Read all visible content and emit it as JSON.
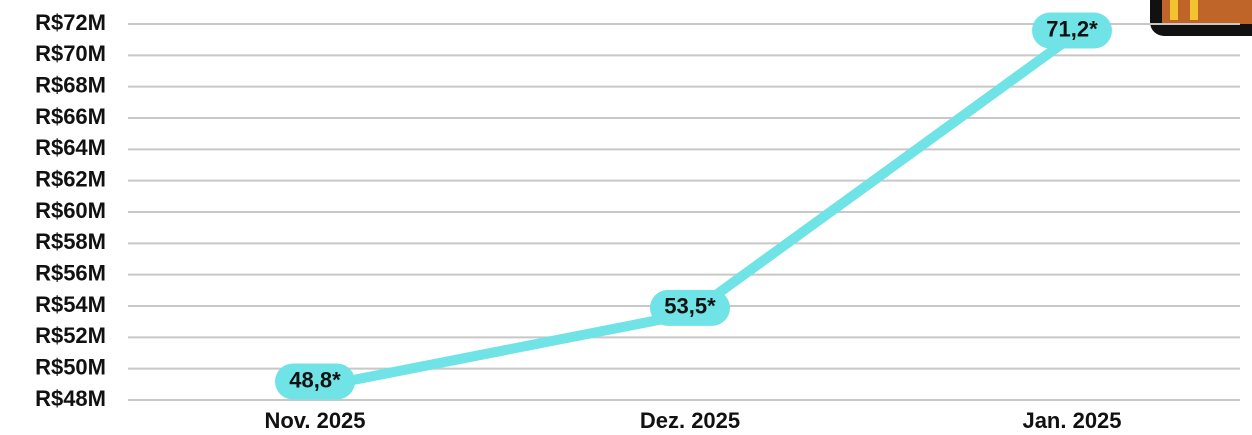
{
  "chart_data": {
    "type": "line",
    "categories": [
      "Nov. 2025",
      "Dez. 2025",
      "Jan. 2025"
    ],
    "series": [
      {
        "color": "#6fe3e6",
        "values": [
          48.8,
          53.5,
          71.2
        ],
        "value_labels": [
          "48,8*",
          "53,5*",
          "71,2*"
        ]
      }
    ],
    "ylim": [
      48,
      72
    ],
    "yticks": [
      {
        "value": 48,
        "label": "R$48M"
      },
      {
        "value": 50,
        "label": "R$50M"
      },
      {
        "value": 52,
        "label": "R$52M"
      },
      {
        "value": 54,
        "label": "R$54M"
      },
      {
        "value": 56,
        "label": "R$56M"
      },
      {
        "value": 58,
        "label": "R$58M"
      },
      {
        "value": 60,
        "label": "R$60M"
      },
      {
        "value": 62,
        "label": "R$62M"
      },
      {
        "value": 64,
        "label": "R$64M"
      },
      {
        "value": 66,
        "label": "R$66M"
      },
      {
        "value": 68,
        "label": "R$68M"
      },
      {
        "value": 70,
        "label": "R$70M"
      },
      {
        "value": 72,
        "label": "R$72M"
      }
    ],
    "grid": true
  }
}
